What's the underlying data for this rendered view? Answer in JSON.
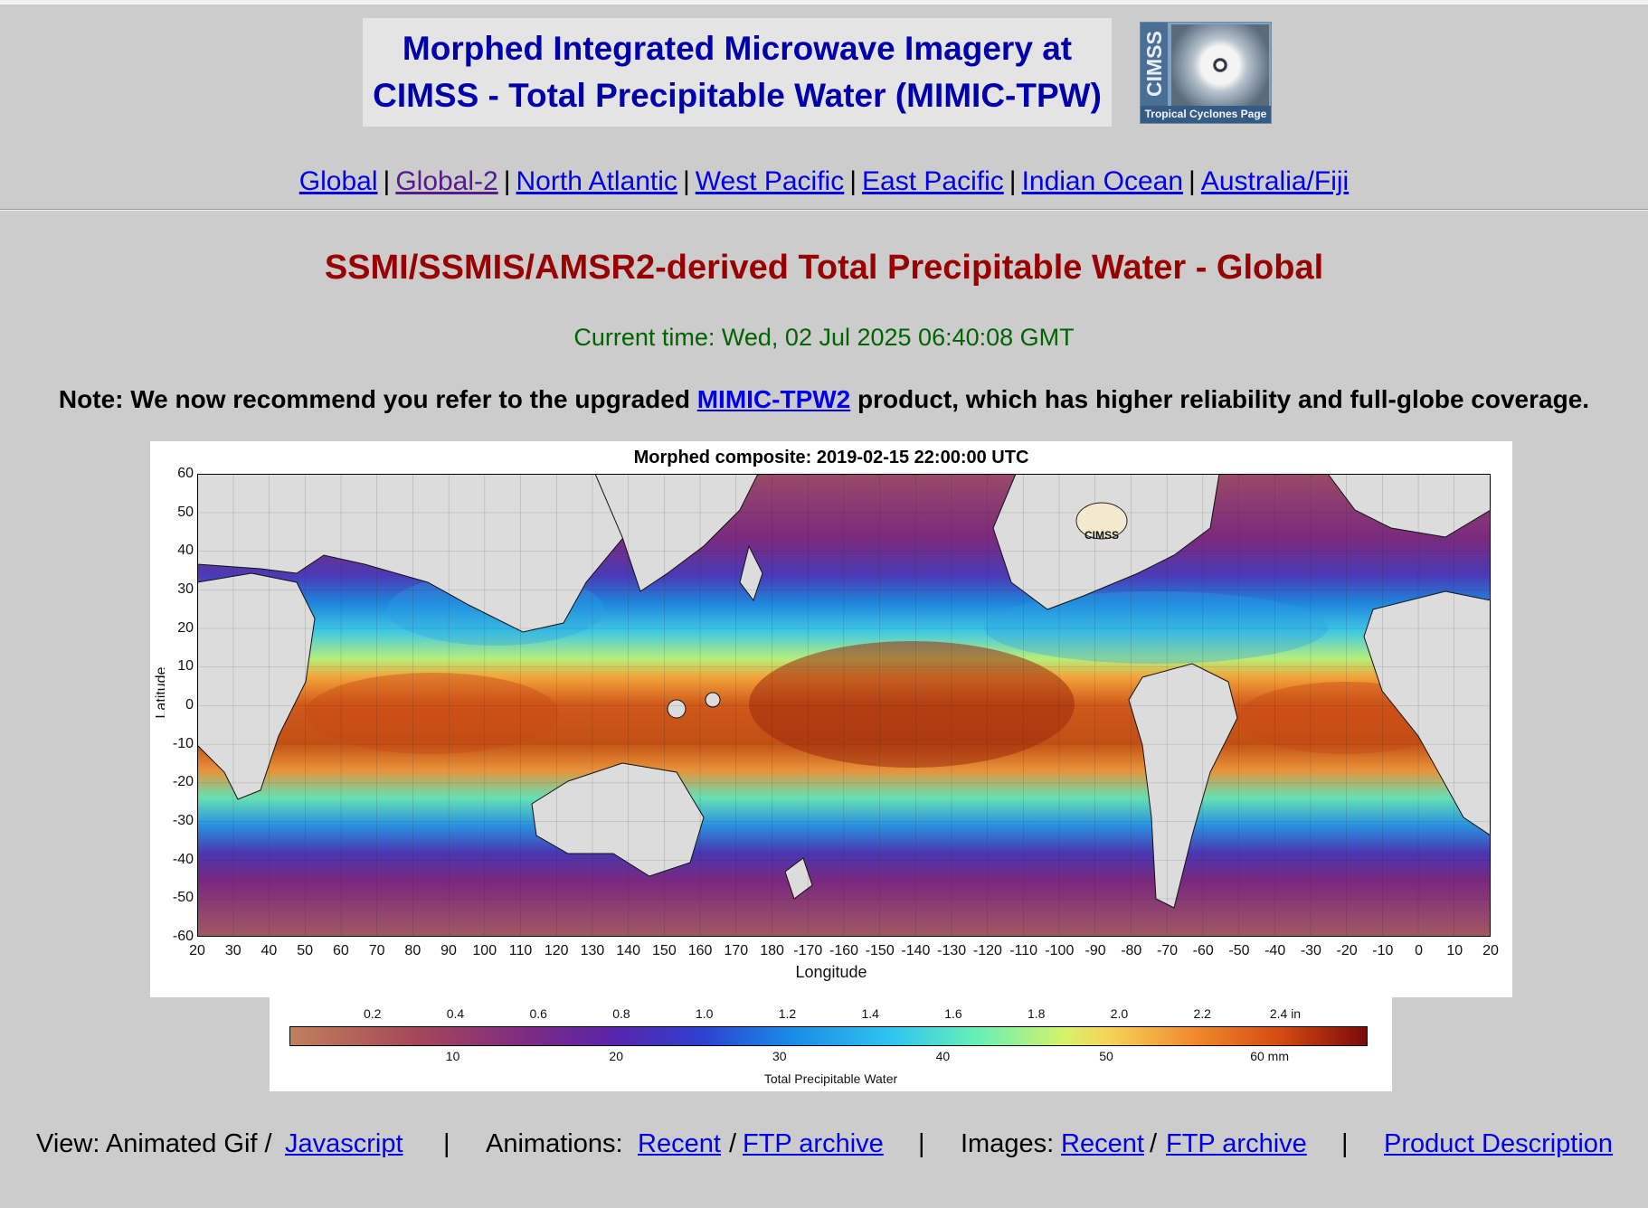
{
  "header": {
    "title_line1": "Morphed Integrated Microwave Imagery at",
    "title_line2": "CIMSS - Total Precipitable Water (MIMIC-TPW)",
    "logo_text": "CIMSS",
    "logo_caption": "Tropical Cyclones Page"
  },
  "nav": {
    "items": [
      "Global",
      "Global-2",
      "North Atlantic",
      "West Pacific",
      "East Pacific",
      "Indian Ocean",
      "Australia/Fiji"
    ],
    "separator": "|"
  },
  "main": {
    "title": "SSMI/SSMIS/AMSR2-derived Total Precipitable Water - Global",
    "current_time": "Current time: Wed, 02 Jul 2025 06:40:08 GMT",
    "note_prefix": "Note: We now recommend you refer to the upgraded",
    "note_link": "MIMIC-TPW2",
    "note_suffix": "product, which has higher reliability and full-globe coverage."
  },
  "map": {
    "title": "Morphed composite: 2019-02-15 22:00:00 UTC",
    "ylabel": "Latitude",
    "xlabel": "Longitude",
    "lat_ticks": [
      "60",
      "50",
      "40",
      "30",
      "20",
      "10",
      "0",
      "-10",
      "-20",
      "-30",
      "-40",
      "-50",
      "-60"
    ],
    "lon_ticks": [
      "20",
      "30",
      "40",
      "50",
      "60",
      "70",
      "80",
      "90",
      "100",
      "110",
      "120",
      "130",
      "140",
      "150",
      "160",
      "170",
      "180",
      "-170",
      "-160",
      "-150",
      "-140",
      "-130",
      "-120",
      "-110",
      "-100",
      "-90",
      "-80",
      "-70",
      "-60",
      "-50",
      "-40",
      "-30",
      "-20",
      "-10",
      "0",
      "10",
      "20"
    ],
    "watermark": "CIMSS"
  },
  "colorbar": {
    "inch_ticks": [
      "0.2",
      "0.4",
      "0.6",
      "0.8",
      "1.0",
      "1.2",
      "1.4",
      "1.6",
      "1.8",
      "2.0",
      "2.2",
      "2.4 in"
    ],
    "mm_ticks": [
      "10",
      "20",
      "30",
      "40",
      "50",
      "60 mm"
    ],
    "caption": "Total Precipitable Water",
    "colors": [
      "#c1805a",
      "#a4465a",
      "#7e2a84",
      "#5a24aa",
      "#2f3fd0",
      "#1b86e6",
      "#2fc6f0",
      "#6af0b4",
      "#d6f26a",
      "#f6d35a",
      "#f08a2e",
      "#d44a12",
      "#7a0a0a"
    ]
  },
  "footer": {
    "view_prefix": "View: Animated Gif /",
    "view_link": "Javascript",
    "animations_prefix": "Animations:",
    "animations_recent": "Recent",
    "animations_ftp": "FTP archive",
    "images_prefix": "Images:",
    "images_recent": "Recent",
    "images_ftp": "FTP archive",
    "product_description": "Product Description",
    "separator": "|",
    "slash": "/"
  }
}
